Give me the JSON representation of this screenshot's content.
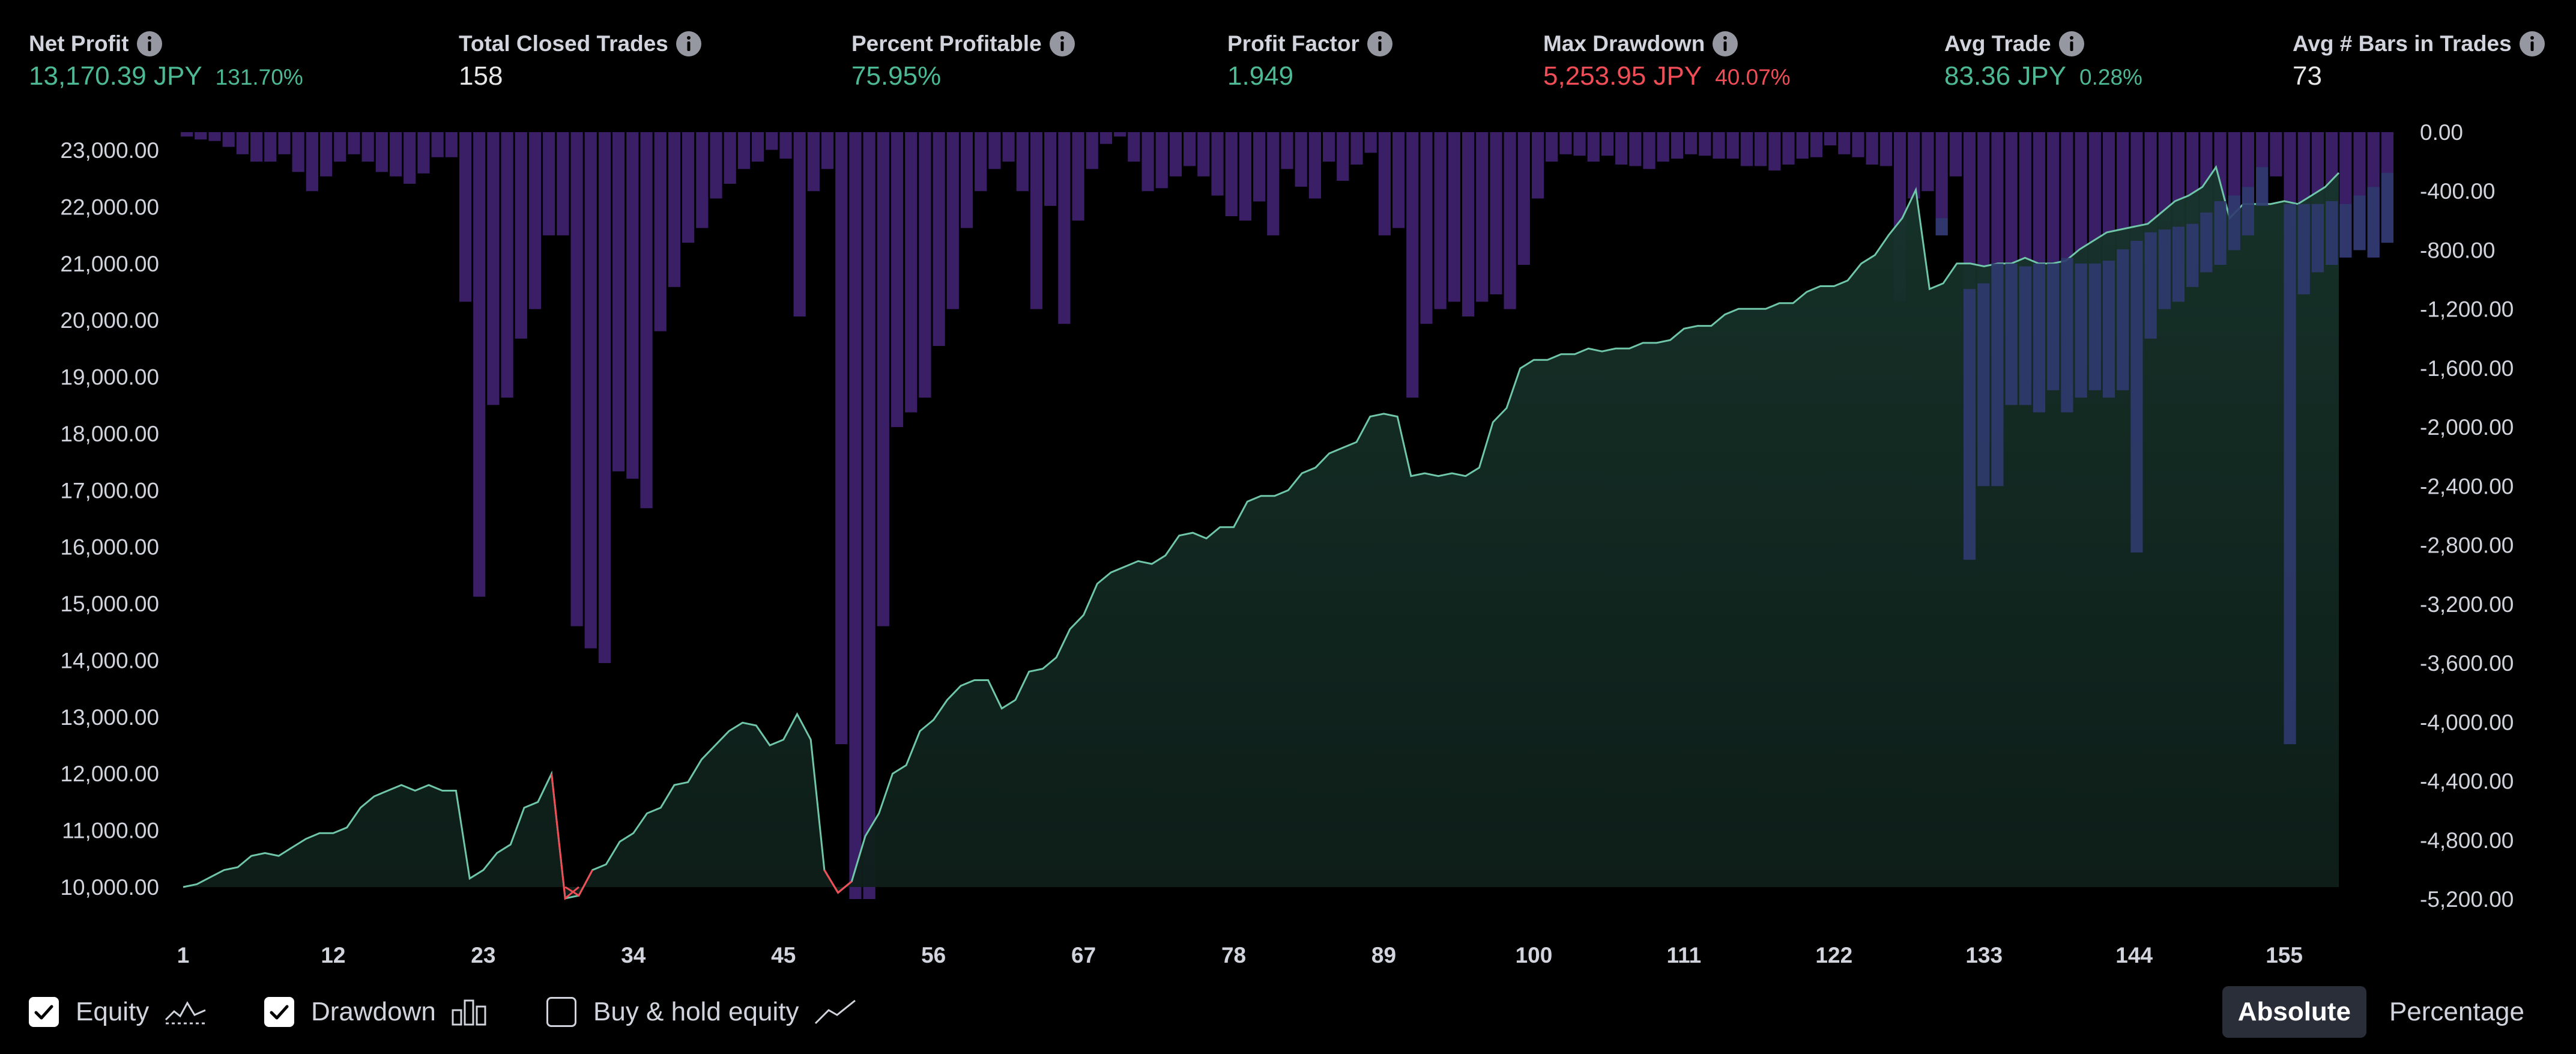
{
  "stats": [
    {
      "label": "Net Profit",
      "value": "13,170.39 JPY",
      "pct": "131.70%",
      "tone": "pos"
    },
    {
      "label": "Total Closed Trades",
      "value": "158",
      "pct": "",
      "tone": "neu"
    },
    {
      "label": "Percent Profitable",
      "value": "75.95%",
      "pct": "",
      "tone": "pos"
    },
    {
      "label": "Profit Factor",
      "value": "1.949",
      "pct": "",
      "tone": "pos"
    },
    {
      "label": "Max Drawdown",
      "value": "5,253.95 JPY",
      "pct": "40.07%",
      "tone": "neg"
    },
    {
      "label": "Avg Trade",
      "value": "83.36 JPY",
      "pct": "0.28%",
      "tone": "pos"
    },
    {
      "label": "Avg # Bars in Trades",
      "value": "73",
      "pct": "",
      "tone": "neu"
    }
  ],
  "legend": {
    "equity_label": "Equity",
    "equity_checked": true,
    "drawdown_label": "Drawdown",
    "drawdown_checked": true,
    "buyhold_label": "Buy & hold equity",
    "buyhold_checked": false
  },
  "toggle": {
    "absolute_label": "Absolute",
    "percentage_label": "Percentage",
    "active": "absolute"
  },
  "colors": {
    "equity_line": "#6fc6a8",
    "equity_fill": "#0e2a22",
    "drawdown_bar": "#3a1f66",
    "drawdown_overlap": "#2f3a6e",
    "negative_equity": "#f04d57",
    "axis_text": "#d1d4dc"
  },
  "chart_data": {
    "type": "area",
    "series": [
      {
        "name": "Equity",
        "kind": "line-area",
        "axis": "left"
      },
      {
        "name": "Drawdown",
        "kind": "bar",
        "axis": "right"
      }
    ],
    "left_ticks": [
      "23,000.00",
      "22,000.00",
      "21,000.00",
      "20,000.00",
      "19,000.00",
      "18,000.00",
      "17,000.00",
      "16,000.00",
      "15,000.00",
      "14,000.00",
      "13,000.00",
      "12,000.00",
      "11,000.00",
      "10,000.00"
    ],
    "right_ticks": [
      "0.00",
      "-400.00",
      "-800.00",
      "-1,200.00",
      "-1,600.00",
      "-2,000.00",
      "-2,400.00",
      "-2,800.00",
      "-3,200.00",
      "-3,600.00",
      "-4,000.00",
      "-4,400.00",
      "-4,800.00",
      "-5,200.00"
    ],
    "x_ticks": [
      "1",
      "12",
      "23",
      "34",
      "45",
      "56",
      "67",
      "78",
      "89",
      "100",
      "111",
      "122",
      "133",
      "144",
      "155"
    ],
    "left_range": [
      10000,
      23000
    ],
    "right_range": [
      -5200,
      0
    ],
    "x_range": [
      1,
      159
    ],
    "equity": [
      [
        1,
        10000
      ],
      [
        2,
        10050
      ],
      [
        4,
        10300
      ],
      [
        5,
        10350
      ],
      [
        6,
        10550
      ],
      [
        7,
        10600
      ],
      [
        8,
        10550
      ],
      [
        9,
        10700
      ],
      [
        10,
        10850
      ],
      [
        11,
        10950
      ],
      [
        12,
        10950
      ],
      [
        13,
        11050
      ],
      [
        14,
        11400
      ],
      [
        15,
        11600
      ],
      [
        16,
        11700
      ],
      [
        17,
        11800
      ],
      [
        18,
        11700
      ],
      [
        19,
        11800
      ],
      [
        20,
        11700
      ],
      [
        21,
        11700
      ],
      [
        22,
        10150
      ],
      [
        23,
        10300
      ],
      [
        24,
        10600
      ],
      [
        25,
        10750
      ],
      [
        26,
        11400
      ],
      [
        27,
        11500
      ],
      [
        28,
        12000
      ],
      [
        29,
        9800
      ],
      [
        30,
        9850
      ],
      [
        31,
        10300
      ],
      [
        32,
        10400
      ],
      [
        33,
        10800
      ],
      [
        34,
        10950
      ],
      [
        35,
        11300
      ],
      [
        36,
        11400
      ],
      [
        37,
        11800
      ],
      [
        38,
        11850
      ],
      [
        39,
        12250
      ],
      [
        40,
        12500
      ],
      [
        41,
        12750
      ],
      [
        42,
        12900
      ],
      [
        43,
        12850
      ],
      [
        44,
        12500
      ],
      [
        45,
        12600
      ],
      [
        46,
        13050
      ],
      [
        47,
        12600
      ],
      [
        48,
        10300
      ],
      [
        49,
        9900
      ],
      [
        50,
        10100
      ],
      [
        51,
        10900
      ],
      [
        52,
        11300
      ],
      [
        53,
        12000
      ],
      [
        54,
        12150
      ],
      [
        55,
        12750
      ],
      [
        56,
        12950
      ],
      [
        57,
        13300
      ],
      [
        58,
        13550
      ],
      [
        59,
        13650
      ],
      [
        60,
        13650
      ],
      [
        61,
        13150
      ],
      [
        62,
        13300
      ],
      [
        63,
        13800
      ],
      [
        64,
        13850
      ],
      [
        65,
        14050
      ],
      [
        66,
        14550
      ],
      [
        67,
        14800
      ],
      [
        68,
        15350
      ],
      [
        69,
        15550
      ],
      [
        70,
        15650
      ],
      [
        71,
        15750
      ],
      [
        72,
        15700
      ],
      [
        73,
        15850
      ],
      [
        74,
        16200
      ],
      [
        75,
        16250
      ],
      [
        76,
        16150
      ],
      [
        77,
        16350
      ],
      [
        78,
        16350
      ],
      [
        79,
        16800
      ],
      [
        80,
        16900
      ],
      [
        81,
        16900
      ],
      [
        82,
        17000
      ],
      [
        83,
        17300
      ],
      [
        84,
        17400
      ],
      [
        85,
        17650
      ],
      [
        86,
        17750
      ],
      [
        87,
        17850
      ],
      [
        88,
        18300
      ],
      [
        89,
        18350
      ],
      [
        90,
        18300
      ],
      [
        91,
        17250
      ],
      [
        92,
        17300
      ],
      [
        93,
        17250
      ],
      [
        94,
        17300
      ],
      [
        95,
        17250
      ],
      [
        96,
        17400
      ],
      [
        97,
        18200
      ],
      [
        98,
        18450
      ],
      [
        99,
        19150
      ],
      [
        100,
        19300
      ],
      [
        101,
        19300
      ],
      [
        102,
        19400
      ],
      [
        103,
        19400
      ],
      [
        104,
        19500
      ],
      [
        105,
        19450
      ],
      [
        106,
        19500
      ],
      [
        107,
        19500
      ],
      [
        108,
        19600
      ],
      [
        109,
        19600
      ],
      [
        110,
        19650
      ],
      [
        111,
        19850
      ],
      [
        112,
        19900
      ],
      [
        113,
        19900
      ],
      [
        114,
        20100
      ],
      [
        115,
        20200
      ],
      [
        116,
        20200
      ],
      [
        117,
        20200
      ],
      [
        118,
        20300
      ],
      [
        119,
        20300
      ],
      [
        120,
        20500
      ],
      [
        121,
        20600
      ],
      [
        122,
        20600
      ],
      [
        123,
        20700
      ],
      [
        124,
        21000
      ],
      [
        125,
        21150
      ],
      [
        126,
        21500
      ],
      [
        127,
        21800
      ],
      [
        128,
        22300
      ],
      [
        129,
        20550
      ],
      [
        130,
        20650
      ],
      [
        131,
        21000
      ],
      [
        132,
        21000
      ],
      [
        133,
        20950
      ],
      [
        134,
        21000
      ],
      [
        135,
        21000
      ],
      [
        136,
        21100
      ],
      [
        137,
        21000
      ],
      [
        138,
        21000
      ],
      [
        139,
        21050
      ],
      [
        140,
        21250
      ],
      [
        141,
        21400
      ],
      [
        142,
        21550
      ],
      [
        143,
        21600
      ],
      [
        144,
        21650
      ],
      [
        145,
        21700
      ],
      [
        146,
        21900
      ],
      [
        147,
        22100
      ],
      [
        148,
        22200
      ],
      [
        149,
        22350
      ],
      [
        150,
        22700
      ],
      [
        151,
        21800
      ],
      [
        152,
        22050
      ],
      [
        153,
        22050
      ],
      [
        154,
        22050
      ],
      [
        155,
        22100
      ],
      [
        156,
        22050
      ],
      [
        157,
        22200
      ],
      [
        158,
        22350
      ],
      [
        159,
        22600
      ]
    ],
    "drawdown": [
      -30,
      -50,
      -60,
      -100,
      -150,
      -200,
      -200,
      -150,
      -270,
      -400,
      -300,
      -200,
      -150,
      -200,
      -270,
      -300,
      -350,
      -280,
      -170,
      -170,
      -1150,
      -3150,
      -1850,
      -1800,
      -1400,
      -1200,
      -700,
      -700,
      -3350,
      -3500,
      -3600,
      -2300,
      -2350,
      -2550,
      -1350,
      -1050,
      -750,
      -650,
      -450,
      -350,
      -250,
      -200,
      -120,
      -180,
      -1250,
      -400,
      -250,
      -4150,
      -5200,
      -5200,
      -3350,
      -2000,
      -1900,
      -1800,
      -1450,
      -1200,
      -650,
      -400,
      -250,
      -200,
      -400,
      -1200,
      -500,
      -1300,
      -600,
      -250,
      -80,
      -30,
      -200,
      -400,
      -380,
      -300,
      -230,
      -300,
      -430,
      -570,
      -600,
      -470,
      -700,
      -250,
      -370,
      -450,
      -200,
      -330,
      -220,
      -140,
      -700,
      -650,
      -1800,
      -1300,
      -1200,
      -1150,
      -1250,
      -1150,
      -1100,
      -1200,
      -900,
      -450,
      -200,
      -150,
      -160,
      -200,
      -160,
      -220,
      -230,
      -250,
      -200,
      -180,
      -150,
      -160,
      -180,
      -180,
      -230,
      -230,
      -260,
      -220,
      -180,
      -170,
      -90,
      -150,
      -170,
      -220,
      -230,
      -1150,
      -450,
      -400,
      -700,
      -300,
      -2900,
      -2400,
      -2400,
      -1850,
      -1850,
      -1900,
      -1750,
      -1900,
      -1800,
      -1750,
      -1800,
      -1750,
      -2850,
      -1400,
      -1200,
      -1150,
      -1050,
      -950,
      -900,
      -800,
      -700,
      -500,
      -300,
      -4150,
      -1100,
      -950,
      -900,
      -850,
      -800,
      -850,
      -750
    ]
  }
}
